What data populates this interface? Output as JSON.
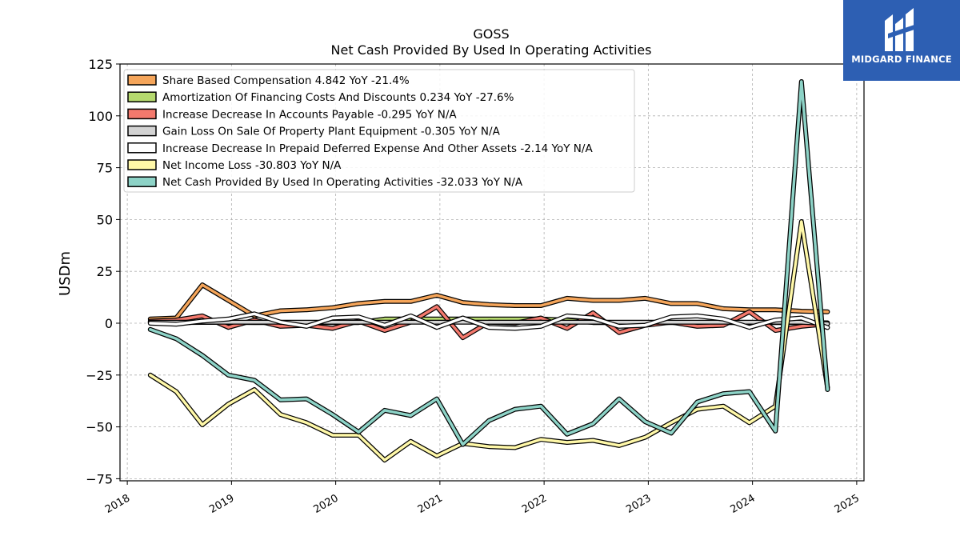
{
  "chart_data": {
    "type": "line",
    "title": "GOSS",
    "subtitle": "Net Cash Provided By Used In Operating Activities",
    "ylabel": "USDm",
    "xlabel": "",
    "ylim": [
      -76,
      125
    ],
    "xlim": [
      2017.93,
      2025.07
    ],
    "y_ticks": [
      -75,
      -50,
      -25,
      0,
      25,
      50,
      75,
      100,
      125
    ],
    "x_ticks": [
      2018,
      2019,
      2020,
      2021,
      2022,
      2023,
      2024,
      2025
    ],
    "grid": true,
    "legend_position": "top-left",
    "x": [
      2018.22,
      2018.47,
      2018.72,
      2018.97,
      2019.22,
      2019.47,
      2019.72,
      2019.97,
      2020.22,
      2020.47,
      2020.72,
      2020.97,
      2021.22,
      2021.47,
      2021.72,
      2021.97,
      2022.22,
      2022.47,
      2022.72,
      2022.97,
      2023.22,
      2023.47,
      2023.72,
      2023.97,
      2024.22,
      2024.47,
      2024.72
    ],
    "series": [
      {
        "name": "Share Based Compensation",
        "legend_label": "Share Based Compensation  4.842 YoY -21.4%",
        "color": "#f5a55a",
        "values": [
          2.0,
          2.5,
          18.5,
          11.0,
          3.5,
          6.0,
          6.5,
          7.5,
          9.5,
          10.5,
          10.5,
          13.5,
          10.0,
          9.0,
          8.5,
          8.5,
          12.0,
          11.0,
          11.0,
          12.0,
          9.5,
          9.5,
          7.0,
          6.5,
          6.5,
          5.8,
          5.5
        ]
      },
      {
        "name": "Amortization Of Financing Costs And Discounts",
        "legend_label": "Amortization Of Financing Costs And Discounts  0.234 YoY -27.6%",
        "color": "#b5d96e",
        "values": [
          0.3,
          0.3,
          0.4,
          0.4,
          0.3,
          0.3,
          0.3,
          0.3,
          0.3,
          2.0,
          2.0,
          2.0,
          2.0,
          2.0,
          2.0,
          2.0,
          1.5,
          0.3,
          0.3,
          0.3,
          0.3,
          0.3,
          0.3,
          0.3,
          0.3,
          0.3,
          0.2
        ]
      },
      {
        "name": "Increase Decrease In Accounts Payable",
        "legend_label": "Increase Decrease In Accounts Payable  -0.295 YoY N/A",
        "color": "#f4796d",
        "values": [
          1.0,
          1.5,
          3.5,
          -2.0,
          1.5,
          -1.5,
          -1.0,
          -2.5,
          1.0,
          -3.5,
          0.5,
          8.0,
          -7.0,
          0.5,
          0.0,
          2.5,
          -2.5,
          5.0,
          -4.5,
          -1.0,
          0.5,
          -1.5,
          -1.0,
          5.5,
          -3.5,
          -1.5,
          -0.3
        ]
      },
      {
        "name": "Gain Loss On Sale Of Property Plant Equipment",
        "legend_label": "Gain Loss On Sale Of Property Plant Equipment  -0.305 YoY N/A",
        "color": "#d3d3d3",
        "values": [
          0.5,
          0.5,
          0.5,
          0.5,
          0.5,
          0.5,
          0.5,
          0.5,
          0.5,
          0.5,
          0.5,
          0.5,
          0.5,
          0.5,
          0.5,
          0.5,
          0.5,
          0.5,
          0.5,
          0.5,
          0.5,
          0.5,
          0.5,
          0.5,
          0.5,
          0.5,
          -0.3
        ]
      },
      {
        "name": "Increase Decrease In Prepaid Deferred Expense And Other Assets",
        "legend_label": "Increase Decrease In Prepaid Deferred Expense And Other Assets  -2.14 YoY N/A",
        "color": "#ffffff",
        "values": [
          0.0,
          -0.5,
          1.0,
          2.0,
          4.5,
          0.5,
          -1.5,
          2.5,
          3.0,
          -1.0,
          3.5,
          -2.0,
          2.5,
          -2.0,
          -2.5,
          -1.5,
          3.5,
          2.5,
          -1.5,
          -1.0,
          3.0,
          3.5,
          2.0,
          -2.0,
          1.5,
          2.5,
          -2.1
        ]
      },
      {
        "name": "Net Income Loss",
        "legend_label": "Net Income Loss  -30.803 YoY N/A",
        "color": "#fff8a8",
        "values": [
          -25.0,
          -33.0,
          -49.0,
          -39.0,
          -32.0,
          -44.0,
          -48.0,
          -54.0,
          -54.0,
          -66.0,
          -57.0,
          -64.0,
          -58.0,
          -59.5,
          -60.0,
          -56.0,
          -57.5,
          -56.5,
          -59.0,
          -55.0,
          -48.0,
          -41.5,
          -40.0,
          -48.0,
          -40.0,
          49.0,
          -31.0
        ]
      },
      {
        "name": "Net Cash Provided By Used In Operating Activities",
        "legend_label": "Net Cash Provided By Used In Operating Activities  -32.033 YoY N/A",
        "color": "#8dd3c7",
        "values": [
          -3.0,
          -7.5,
          -15.5,
          -25.0,
          -27.5,
          -37.0,
          -36.5,
          -44.0,
          -52.5,
          -42.0,
          -44.5,
          -36.5,
          -58.5,
          -47.0,
          -41.5,
          -40.0,
          -53.5,
          -48.5,
          -36.5,
          -47.5,
          -53.0,
          -38.0,
          -34.0,
          -33.0,
          -52.0,
          116.5,
          -32.0
        ]
      }
    ]
  },
  "brand": {
    "name": "MIDGARD FINANCE",
    "color": "#2d5fb3"
  }
}
